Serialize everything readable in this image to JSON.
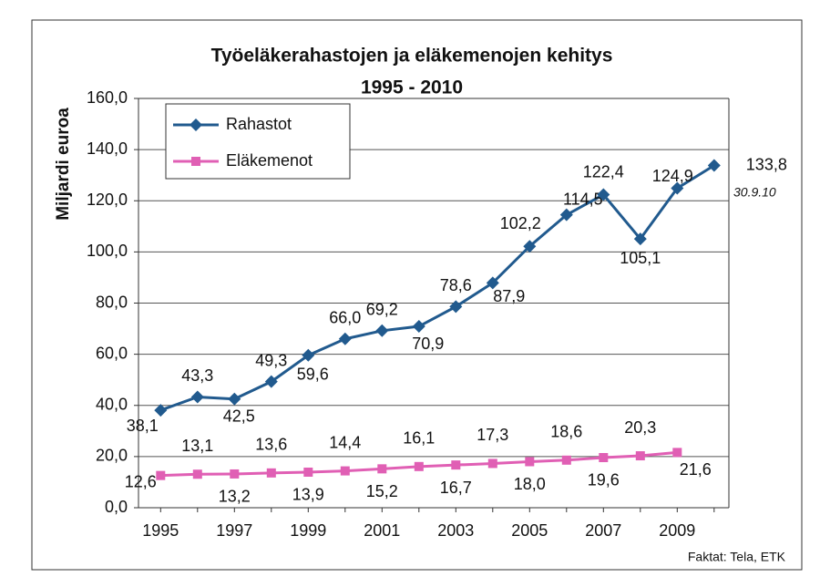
{
  "chart_data": {
    "type": "line",
    "title": "Työeläkerahastojen ja eläkemenojen kehitys",
    "subtitle": "1995 - 2010",
    "y_label": "Miljardi euroa",
    "annotation": "30.9.10",
    "source": "Faktat: Tela, ETK",
    "categories": [
      "1995",
      null,
      "1997",
      null,
      "1999",
      null,
      "2001",
      null,
      "2003",
      null,
      "2005",
      null,
      "2007",
      null,
      "2009",
      null
    ],
    "series": [
      {
        "name": "Rahastot",
        "color": "#215a8e",
        "marker": "diamond",
        "values": [
          38.1,
          43.3,
          42.5,
          49.3,
          59.6,
          66.0,
          69.2,
          70.9,
          78.6,
          87.9,
          102.2,
          114.5,
          122.4,
          105.1,
          124.9,
          133.8
        ],
        "value_labels": [
          "38,1",
          "43,3",
          "42,5",
          "49,3",
          "59,6",
          "66,0",
          "69,2",
          "70,9",
          "78,6",
          "87,9",
          "102,2",
          "114,5",
          "122,4",
          "105,1",
          "124,9",
          "133,8"
        ]
      },
      {
        "name": "Eläkemenot",
        "color": "#e05fb4",
        "marker": "square",
        "values": [
          12.6,
          13.1,
          13.2,
          13.6,
          13.9,
          14.4,
          15.2,
          16.1,
          16.7,
          17.3,
          18.0,
          18.6,
          19.6,
          20.3,
          21.6,
          null
        ],
        "value_labels": [
          "12,6",
          "13,1",
          "13,2",
          "13,6",
          "13,9",
          "14,4",
          "15,2",
          "16,1",
          "16,7",
          "17,3",
          "18,0",
          "18,6",
          "19,6",
          "20,3",
          "21,6",
          null
        ]
      }
    ],
    "ylim": [
      0,
      160
    ],
    "yticks": [
      {
        "value": 0,
        "label": "0,0"
      },
      {
        "value": 20,
        "label": "20,0"
      },
      {
        "value": 40,
        "label": "40,0"
      },
      {
        "value": 60,
        "label": "60,0"
      },
      {
        "value": 80,
        "label": "80,0"
      },
      {
        "value": 100,
        "label": "100,0"
      },
      {
        "value": 120,
        "label": "120,0"
      },
      {
        "value": 140,
        "label": "140,0"
      },
      {
        "value": 160,
        "label": "160,0"
      }
    ],
    "grid": true,
    "legend": "top-left"
  }
}
